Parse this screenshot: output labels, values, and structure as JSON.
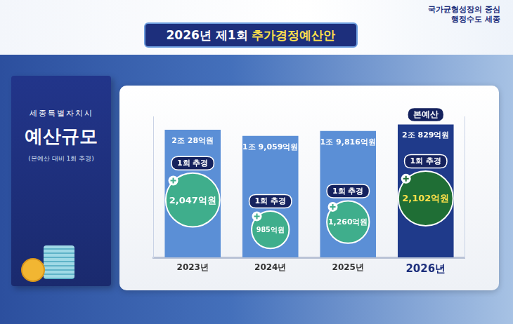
{
  "chart_data": {
    "type": "bar",
    "title": "2026년 제1회 추가경정예산안",
    "categories": [
      "2023년",
      "2024년",
      "2025년",
      "2026년"
    ],
    "series": [
      {
        "name": "본예산",
        "type": "bar",
        "colors": [
          "#5b8fd6",
          "#5b8fd6",
          "#5b8fd6",
          "#1f3a8a"
        ],
        "values": [
          20028,
          19059,
          19816,
          20829
        ],
        "value_labels": [
          "2조 28억원",
          "1조 9,059억원",
          "1조 9,816억원",
          "2조 829억원"
        ]
      },
      {
        "name": "1회 추경",
        "type": "scatter",
        "marker": "circle",
        "axis": "y2",
        "colors": [
          "#3fae8c",
          "#3fae8c",
          "#3fae8c",
          "#1f6e35"
        ],
        "values": [
          2047,
          985,
          1260,
          2102
        ],
        "value_labels": [
          "2,047억원",
          "985억원",
          "1,260억원",
          "2,102억원"
        ]
      }
    ],
    "ylim": [
      0,
      22000
    ],
    "y2lim": [
      0,
      5000
    ],
    "tick_labels": "x",
    "grid": false,
    "data_labels": true
  },
  "header": [
    "국가균형성장의 중심",
    "행정수도 세종"
  ],
  "side_panel": [
    "세종특별자치시",
    "예산규모",
    "(본예산 대비 1회 추경)"
  ]
}
